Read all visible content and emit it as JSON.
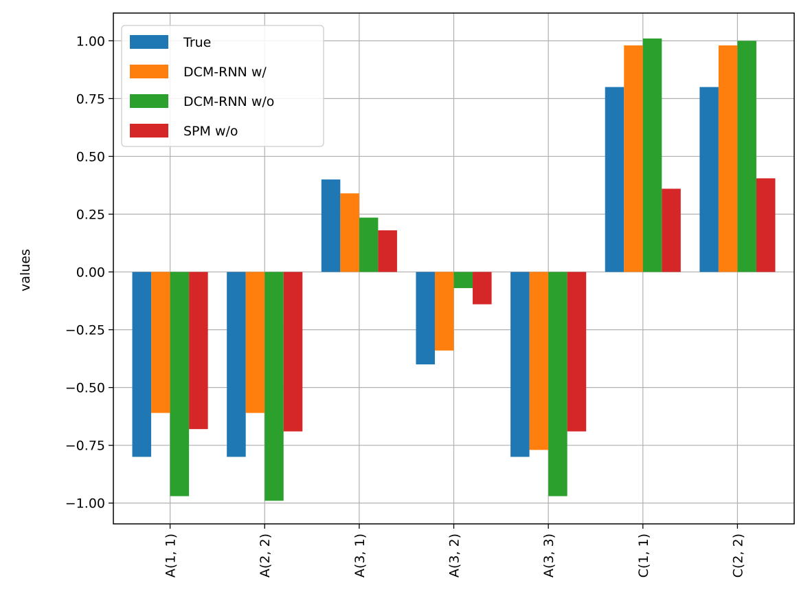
{
  "chart_data": {
    "type": "bar",
    "title": "",
    "xlabel": "",
    "ylabel": "values",
    "ylim": [
      -1.09,
      1.12
    ],
    "yticks": [
      1.0,
      0.75,
      0.5,
      0.25,
      0.0,
      -0.25,
      -0.5,
      -0.75,
      -1.0
    ],
    "ytick_labels": [
      "1.00",
      "0.75",
      "0.50",
      "0.25",
      "0.00",
      "−0.25",
      "−0.50",
      "−0.75",
      "−1.00"
    ],
    "categories": [
      "A(1, 1)",
      "A(2, 2)",
      "A(3, 1)",
      "A(3, 2)",
      "A(3, 3)",
      "C(1, 1)",
      "C(2, 2)"
    ],
    "grid": true,
    "legend_position": "top-left",
    "series": [
      {
        "name": "True",
        "color": "#1f77b4",
        "values": [
          -0.8,
          -0.8,
          0.4,
          -0.4,
          -0.8,
          0.8,
          0.8
        ]
      },
      {
        "name": "DCM-RNN w/",
        "color": "#ff7f0e",
        "values": [
          -0.61,
          -0.61,
          0.34,
          -0.34,
          -0.77,
          0.98,
          0.98
        ]
      },
      {
        "name": "DCM-RNN w/o",
        "color": "#2ca02c",
        "values": [
          -0.97,
          -0.99,
          0.235,
          -0.07,
          -0.97,
          1.01,
          1.0
        ]
      },
      {
        "name": "SPM w/o",
        "color": "#d62728",
        "values": [
          -0.68,
          -0.69,
          0.18,
          -0.14,
          -0.69,
          0.36,
          0.405
        ]
      }
    ]
  }
}
